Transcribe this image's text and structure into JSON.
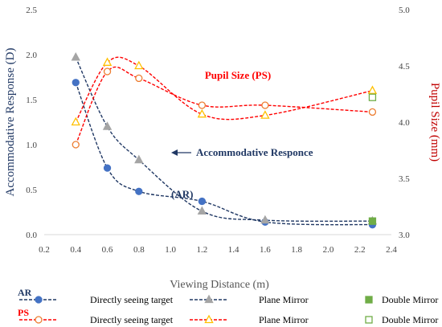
{
  "chart_data": {
    "type": "line",
    "xlabel": "Viewing Distance (m)",
    "ylabel_left": "Accommodative Response (D)",
    "ylabel_right": "Pupil Size (mm)",
    "xlim": [
      0.2,
      2.4
    ],
    "ylim_left": [
      0,
      2.5
    ],
    "ylim_right": [
      3,
      5
    ],
    "x_ticks": [
      "0.2",
      "0.4",
      "0.6",
      "0.8",
      "1.0",
      "1.2",
      "1.4",
      "1.6",
      "1.8",
      "2.0",
      "2.2",
      "2.4"
    ],
    "y_ticks_left": [
      "0.0",
      "0.5",
      "1.0",
      "1.5",
      "2.0",
      "2.5"
    ],
    "y_ticks_right": [
      "3.0",
      "3.5",
      "4.0",
      "4.5",
      "5.0"
    ],
    "grid": false,
    "annotations": {
      "ps": "Pupil Size (PS)",
      "ar_line1": "Accommodative Responce",
      "ar_line2": "(AR)"
    },
    "colors": {
      "ar": "#203864",
      "ps": "#ff0000",
      "ar_marker": "#4472c4",
      "ps_marker": "#ed7d31",
      "plane": "#a5a5a5",
      "yellow": "#ffc000",
      "double": "#70ad47",
      "axis_left": "#203864",
      "axis_right": "#c00000"
    },
    "series": [
      {
        "name": "Directly seeing target",
        "axis": "left",
        "group": "AR",
        "marker": "circle-filled",
        "x": [
          0.4,
          0.6,
          0.8,
          1.2,
          1.6,
          2.28
        ],
        "y": [
          1.69,
          0.74,
          0.48,
          0.37,
          0.14,
          0.11
        ]
      },
      {
        "name": "Plane Mirror",
        "axis": "left",
        "group": "AR",
        "marker": "triangle-filled",
        "x": [
          0.4,
          0.6,
          0.8,
          1.2,
          1.6,
          2.28
        ],
        "y": [
          1.97,
          1.2,
          0.83,
          0.26,
          0.16,
          0.15
        ]
      },
      {
        "name": "Double Mirror",
        "axis": "left",
        "group": "AR",
        "marker": "square-filled",
        "x": [
          2.28
        ],
        "y": [
          0.15
        ]
      },
      {
        "name": "Directly seeing target",
        "axis": "right",
        "group": "PS",
        "marker": "circle-open",
        "x": [
          0.4,
          0.6,
          0.8,
          1.2,
          1.6,
          2.28
        ],
        "y": [
          3.8,
          4.45,
          4.39,
          4.15,
          4.15,
          4.09
        ]
      },
      {
        "name": "Plane Mirror",
        "axis": "right",
        "group": "PS",
        "marker": "triangle-open",
        "x": [
          0.4,
          0.6,
          0.8,
          1.2,
          1.6,
          2.28
        ],
        "y": [
          4.0,
          4.53,
          4.5,
          4.07,
          4.06,
          4.28
        ]
      },
      {
        "name": "Double Mirror",
        "axis": "right",
        "group": "PS",
        "marker": "square-open",
        "x": [
          2.28
        ],
        "y": [
          4.22
        ]
      }
    ],
    "legend": {
      "rows": [
        {
          "prefix": "AR",
          "items": [
            "Directly seeing target",
            "Plane Mirror",
            "Double Mirror"
          ]
        },
        {
          "prefix": "PS",
          "items": [
            "Directly seeing target",
            "Plane Mirror",
            "Double Mirror"
          ]
        }
      ]
    }
  }
}
